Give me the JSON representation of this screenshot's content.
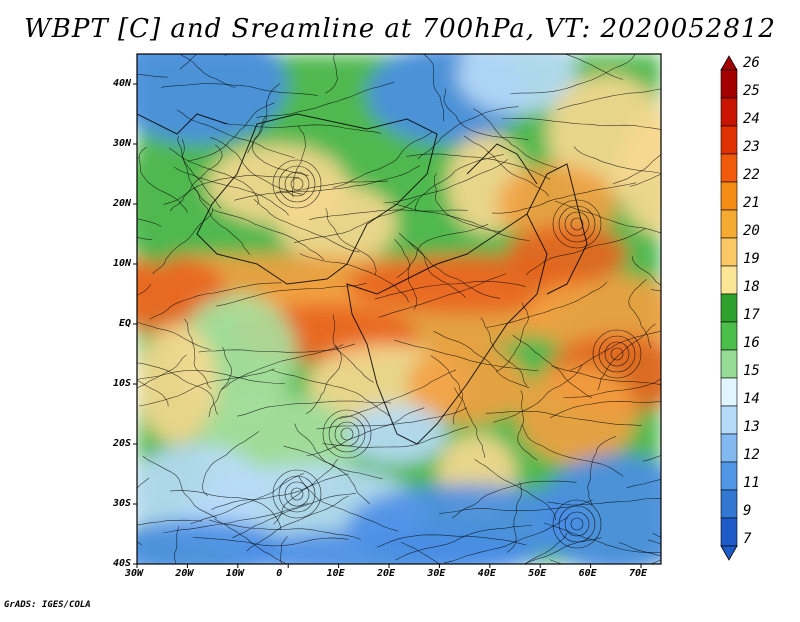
{
  "title": "WBPT [C] and Sreamline at 700hPa, VT: 2020052812",
  "credit": "GrADS: IGES/COLA",
  "map": {
    "lat_labels": [
      "40N",
      "30N",
      "20N",
      "10N",
      "EQ",
      "10S",
      "20S",
      "30S",
      "40S"
    ],
    "lon_labels": [
      "30W",
      "20W",
      "10W",
      "0",
      "10E",
      "20E",
      "30E",
      "40E",
      "50E",
      "60E",
      "70E"
    ]
  },
  "colorbar": {
    "labels": [
      "26",
      "25",
      "24",
      "23",
      "22",
      "21",
      "20",
      "19",
      "18",
      "17",
      "16",
      "15",
      "14",
      "13",
      "12",
      "11",
      "9",
      "7"
    ],
    "colors": [
      "#a50000",
      "#c81400",
      "#e03200",
      "#f05a0a",
      "#f58c14",
      "#f5aa32",
      "#fac864",
      "#fae696",
      "#2da02d",
      "#4bbe4b",
      "#96dc96",
      "#e1f5ff",
      "#b4dcfa",
      "#82b9f0",
      "#5096e6",
      "#3278d2",
      "#1e5ac8"
    ]
  },
  "palette": {
    "warm_core": "#e8641e",
    "warm": "#f3a040",
    "tan": "#f7d890",
    "green": "#50b850",
    "light_green": "#a8e0a0",
    "light_blue": "#b8dcf8",
    "blue": "#4a8ee6"
  }
}
